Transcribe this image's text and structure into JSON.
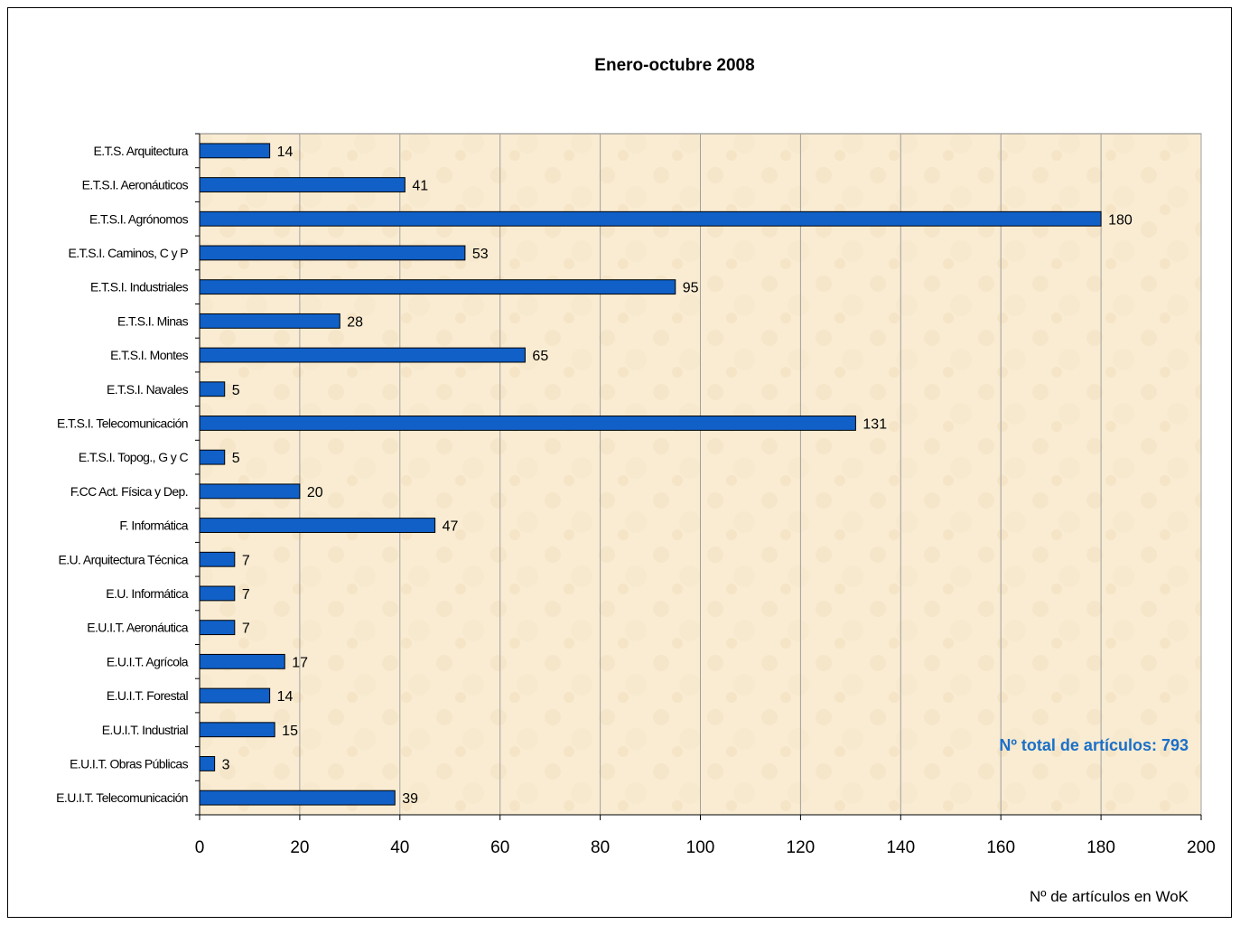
{
  "chart_data": {
    "type": "bar",
    "orientation": "horizontal",
    "title": "Enero-octubre 2008",
    "xlabel": "Nº de artículos en WoK",
    "ylabel": "",
    "xlim": [
      0,
      200
    ],
    "x_ticks": [
      0,
      20,
      40,
      60,
      80,
      100,
      120,
      140,
      160,
      180,
      200
    ],
    "grid": "vertical",
    "categories": [
      "E.T.S. Arquitectura",
      "E.T.S.I. Aeronáuticos",
      "E.T.S.I. Agrónomos",
      "E.T.S.I. Caminos, C y P",
      "E.T.S.I. Industriales",
      "E.T.S.I. Minas",
      "E.T.S.I. Montes",
      "E.T.S.I. Navales",
      "E.T.S.I. Telecomunicación",
      "E.T.S.I. Topog., G y C",
      "F.CC Act. Física y Dep.",
      "F. Informática",
      "E.U. Arquitectura Técnica",
      "E.U. Informática",
      "E.U.I.T. Aeronáutica",
      "E.U.I.T. Agrícola",
      "E.U.I.T. Forestal",
      "E.U.I.T. Industrial",
      "E.U.I.T. Obras Públicas",
      "E.U.I.T. Telecomunicación"
    ],
    "values": [
      14,
      41,
      180,
      53,
      95,
      28,
      65,
      5,
      131,
      5,
      20,
      47,
      7,
      7,
      7,
      17,
      14,
      15,
      3,
      39
    ],
    "annotation": "Nº total de artículos: 793",
    "colors": {
      "bar": "#1060c8",
      "bar_border": "#000000",
      "plot_background": "#f9ecd2",
      "grid": "#a0a0a0",
      "annotation": "#1a6fc9"
    }
  }
}
